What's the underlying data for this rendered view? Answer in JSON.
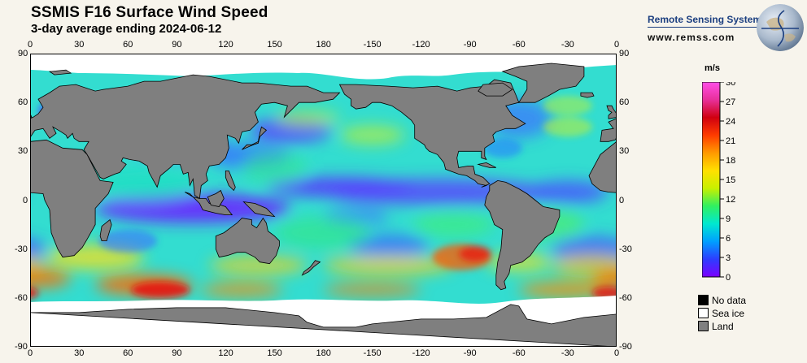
{
  "header": {
    "title": "SSMIS F16 Surface Wind Speed",
    "subtitle": "3-day average ending 2024-06-12"
  },
  "branding": {
    "name": "Remote Sensing Systems",
    "url": "www.remss.com",
    "logo_icon": "globe-icon"
  },
  "map": {
    "lon_labels": [
      "0",
      "30",
      "60",
      "90",
      "120",
      "150",
      "180",
      "-150",
      "-120",
      "-90",
      "-60",
      "-30",
      "0"
    ],
    "lat_labels": [
      "90",
      "60",
      "30",
      "0",
      "-30",
      "-60",
      "-90"
    ],
    "lon_range": [
      0,
      360
    ],
    "lat_range": [
      -90,
      90
    ],
    "land_color": "#808080",
    "ice_color": "#ffffff",
    "nodata_color": "#000000"
  },
  "colorbar": {
    "unit": "m/s",
    "range": [
      0,
      30
    ],
    "ticks": [
      "30",
      "27",
      "24",
      "21",
      "18",
      "15",
      "12",
      "9",
      "6",
      "3",
      "0"
    ],
    "colors": [
      "#7b00ff",
      "#2d3dff",
      "#00a0ff",
      "#00e8d0",
      "#30f060",
      "#c8f000",
      "#ffe000",
      "#ff9a00",
      "#ff3c00",
      "#d00010",
      "#e8309a",
      "#ff4ee8"
    ]
  },
  "legend": [
    {
      "label": "No data",
      "color": "#000000"
    },
    {
      "label": "Sea ice",
      "color": "#ffffff"
    },
    {
      "label": "Land",
      "color": "#808080"
    }
  ]
}
